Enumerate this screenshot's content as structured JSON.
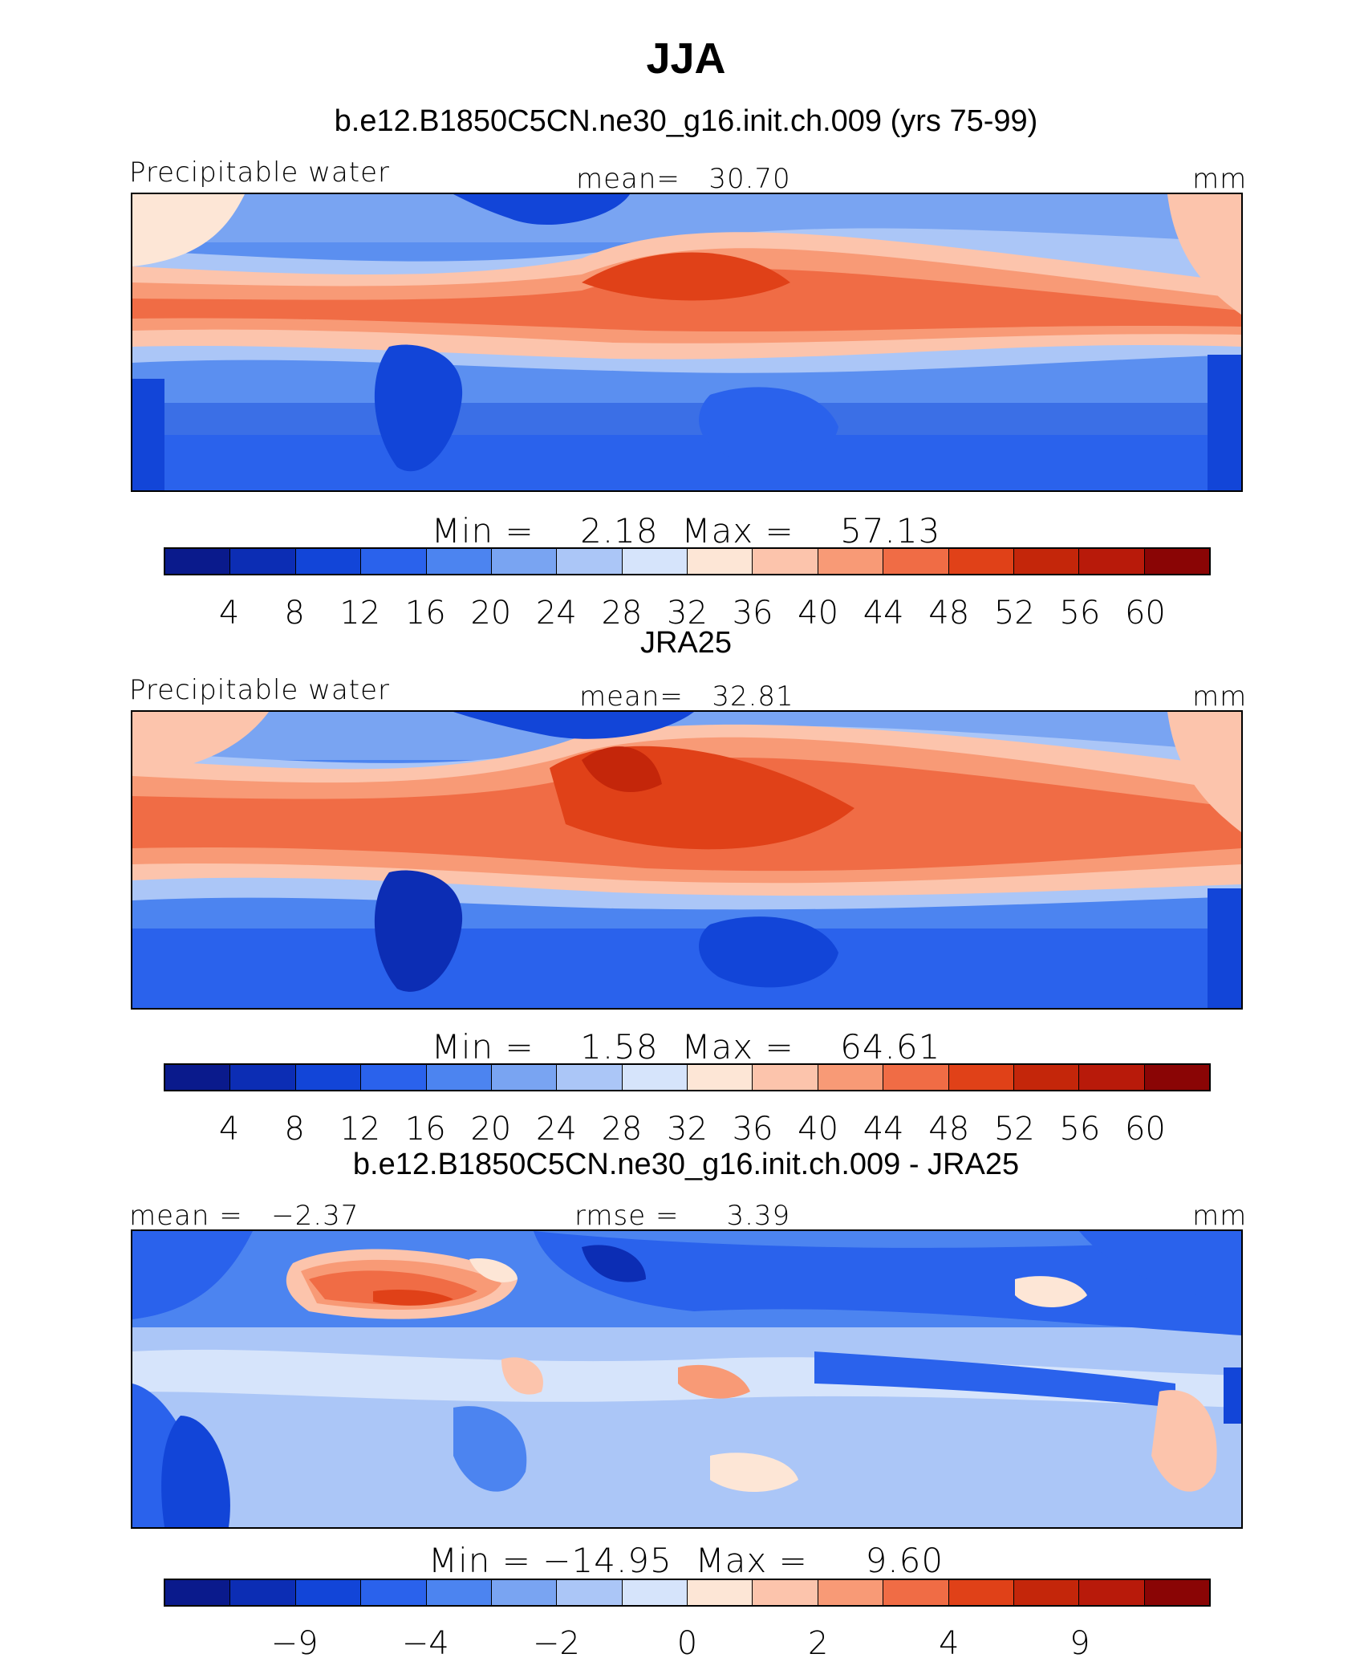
{
  "title": "JJA",
  "panels": [
    {
      "id": "model",
      "subtitle": "b.e12.B1850C5CN.ne30_g16.init.ch.009 (yrs 75-99)",
      "left_label": "Precipitable water",
      "center_label": "mean=   30.70",
      "right_label": "mm",
      "minmax": "Min =    2.18  Max =    57.13",
      "ticks": [
        "4",
        "8",
        "12",
        "16",
        "20",
        "24",
        "28",
        "32",
        "36",
        "40",
        "44",
        "48",
        "52",
        "56",
        "60"
      ],
      "min": 2.18,
      "max": 57.13,
      "mean": 30.7
    },
    {
      "id": "obs",
      "subtitle": "JRA25",
      "left_label": "Precipitable water",
      "center_label": "mean=   32.81",
      "right_label": "mm",
      "minmax": "Min =    1.58  Max =    64.61",
      "ticks": [
        "4",
        "8",
        "12",
        "16",
        "20",
        "24",
        "28",
        "32",
        "36",
        "40",
        "44",
        "48",
        "52",
        "56",
        "60"
      ],
      "min": 1.58,
      "max": 64.61,
      "mean": 32.81
    },
    {
      "id": "diff",
      "subtitle": "b.e12.B1850C5CN.ne30_g16.init.ch.009 - JRA25",
      "left_label": "mean =   −2.37",
      "center_label": "rmse =     3.39",
      "right_label": "mm",
      "minmax": "Min = −14.95  Max =     9.60",
      "ticks": [
        "−9",
        "−4",
        "−2",
        "0",
        "2",
        "4",
        "9"
      ],
      "min": -14.95,
      "max": 9.6,
      "mean": -2.37,
      "rmse": 3.39
    }
  ],
  "colorbar": {
    "colors": [
      "#0a1a8c",
      "#0c2db4",
      "#1245d8",
      "#2a62ec",
      "#4c84f0",
      "#79a4f2",
      "#abc6f7",
      "#d6e4fb",
      "#fde6d6",
      "#fcc4ac",
      "#f89a76",
      "#f06c45",
      "#e04118",
      "#c4260a",
      "#b81a0a",
      "#8a0505"
    ]
  }
}
